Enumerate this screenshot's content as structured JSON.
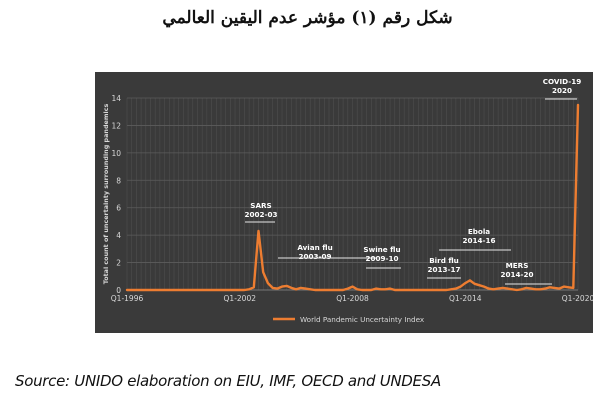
{
  "page": {
    "title": "شكل رقم (١) مؤشر عدم اليقين العالمي",
    "source": "Source: UNIDO elaboration on EIU, IMF, OECD and UNDESA"
  },
  "chart_data": {
    "type": "line",
    "title": "",
    "xlabel": "",
    "ylabel": "Total count of uncertainty surrounding pandemics",
    "ylim": [
      0,
      14
    ],
    "yticks": [
      0,
      2,
      4,
      6,
      8,
      10,
      12,
      14
    ],
    "xtick_labels": [
      "Q1-1996",
      "Q1-2002",
      "Q1-2008",
      "Q1-2014",
      "Q1-2020"
    ],
    "grid": true,
    "legend_position": "bottom",
    "series_color": "#ed7d31",
    "series": [
      {
        "name": "World Pandemic Uncertainty Index",
        "x": [
          "Q1-1996",
          "Q1-1997",
          "Q1-1998",
          "Q1-1999",
          "Q1-2000",
          "Q1-2001",
          "Q3-2001",
          "Q4-2001",
          "Q1-2002",
          "Q2-2002",
          "Q3-2002",
          "Q4-2002",
          "Q1-2003",
          "Q2-2003",
          "Q3-2003",
          "Q4-2003",
          "Q1-2004",
          "Q2-2004",
          "Q3-2004",
          "Q4-2004",
          "Q1-2005",
          "Q2-2005",
          "Q3-2005",
          "Q4-2005",
          "Q1-2006",
          "Q2-2006",
          "Q3-2006",
          "Q4-2006",
          "Q1-2007",
          "Q2-2007",
          "Q3-2007",
          "Q4-2007",
          "Q1-2008",
          "Q2-2008",
          "Q3-2008",
          "Q1-2009",
          "Q2-2009",
          "Q3-2009",
          "Q4-2009",
          "Q1-2010",
          "Q2-2010",
          "Q1-2011",
          "Q1-2012",
          "Q1-2013",
          "Q2-2013",
          "Q3-2013",
          "Q4-2013",
          "Q1-2014",
          "Q2-2014",
          "Q3-2014",
          "Q4-2014",
          "Q1-2015",
          "Q2-2015",
          "Q3-2015",
          "Q4-2015",
          "Q1-2016",
          "Q2-2016",
          "Q3-2016",
          "Q4-2016",
          "Q1-2017",
          "Q2-2017",
          "Q3-2017",
          "Q4-2017",
          "Q1-2018",
          "Q2-2018",
          "Q3-2018",
          "Q4-2018",
          "Q1-2019",
          "Q2-2019",
          "Q3-2019",
          "Q4-2019",
          "Q1-2020"
        ],
        "values": [
          0,
          0,
          0,
          0,
          0,
          0,
          0,
          0,
          0,
          0,
          0.05,
          0.2,
          4.3,
          1.3,
          0.5,
          0.15,
          0.1,
          0.25,
          0.3,
          0.15,
          0.05,
          0.15,
          0.1,
          0.05,
          0,
          0,
          0,
          0,
          0,
          0,
          0,
          0.1,
          0.25,
          0.05,
          0,
          0,
          0.1,
          0.05,
          0.05,
          0.1,
          0,
          0,
          0,
          0,
          0.05,
          0.1,
          0.25,
          0.5,
          0.7,
          0.45,
          0.35,
          0.25,
          0.1,
          0.05,
          0.1,
          0.15,
          0.1,
          0.05,
          0,
          0.05,
          0.15,
          0.1,
          0.05,
          0.05,
          0.1,
          0.2,
          0.15,
          0.1,
          0.25,
          0.2,
          0.15,
          13.5
        ]
      }
    ],
    "annotations": [
      {
        "label": "SARS",
        "period": "2002-03"
      },
      {
        "label": "Avian flu",
        "period": "2003-09"
      },
      {
        "label": "Swine flu",
        "period": "2009-10"
      },
      {
        "label": "Bird flu",
        "period": "2013-17"
      },
      {
        "label": "Ebola",
        "period": "2014-16"
      },
      {
        "label": "MERS",
        "period": "2014-20"
      },
      {
        "label": "COVID-19",
        "period": "2020"
      }
    ]
  }
}
